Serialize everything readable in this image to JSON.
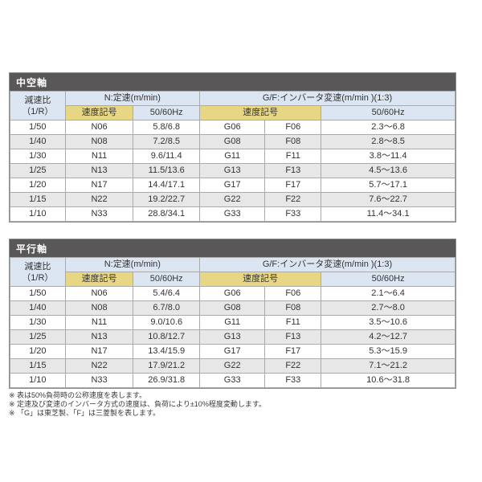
{
  "colors": {
    "band_bg": "#595757",
    "band_text": "#ffffff",
    "header_blue": "#dce6f2",
    "header_yellow": "#e7d784",
    "row_alt_bg": "#e7e7e7",
    "border": "#aaaaaa"
  },
  "tables": [
    {
      "title": "中空軸",
      "header": {
        "ratio_line1": "減速比",
        "ratio_line2": "（1/R）",
        "n_group": "N:定速(m/min)",
        "gf_group": "G/F:インバータ変速(m/min )(1:3)",
        "speed_code_n": "速度記号",
        "hz_n": "50/60Hz",
        "speed_code_gf": "速度記号",
        "hz_gf": "50/60Hz"
      },
      "rows": [
        {
          "ratio": "1/50",
          "n_code": "N06",
          "n_speed": "5.8/6.8",
          "g_code": "G06",
          "f_code": "F06",
          "gf_speed": "2.3〜6.8"
        },
        {
          "ratio": "1/40",
          "n_code": "N08",
          "n_speed": "7.2/8.5",
          "g_code": "G08",
          "f_code": "F08",
          "gf_speed": "2.8〜8.5"
        },
        {
          "ratio": "1/30",
          "n_code": "N11",
          "n_speed": "9.6/11.4",
          "g_code": "G11",
          "f_code": "F11",
          "gf_speed": "3.8〜11.4"
        },
        {
          "ratio": "1/25",
          "n_code": "N13",
          "n_speed": "11.5/13.6",
          "g_code": "G13",
          "f_code": "F13",
          "gf_speed": "4.5〜13.6"
        },
        {
          "ratio": "1/20",
          "n_code": "N17",
          "n_speed": "14.4/17.1",
          "g_code": "G17",
          "f_code": "F17",
          "gf_speed": "5.7〜17.1"
        },
        {
          "ratio": "1/15",
          "n_code": "N22",
          "n_speed": "19.2/22.7",
          "g_code": "G22",
          "f_code": "F22",
          "gf_speed": "7.6〜22.7"
        },
        {
          "ratio": "1/10",
          "n_code": "N33",
          "n_speed": "28.8/34.1",
          "g_code": "G33",
          "f_code": "F33",
          "gf_speed": "11.4〜34.1"
        }
      ]
    },
    {
      "title": "平行軸",
      "header": {
        "ratio_line1": "減速比",
        "ratio_line2": "（1/R）",
        "n_group": "N:定速(m/min)",
        "gf_group": "G/F:インバータ変速(m/min )(1:3)",
        "speed_code_n": "速度記号",
        "hz_n": "50/60Hz",
        "speed_code_gf": "速度記号",
        "hz_gf": "50/60Hz"
      },
      "rows": [
        {
          "ratio": "1/50",
          "n_code": "N06",
          "n_speed": "5.4/6.4",
          "g_code": "G06",
          "f_code": "F06",
          "gf_speed": "2.1〜6.4"
        },
        {
          "ratio": "1/40",
          "n_code": "N08",
          "n_speed": "6.7/8.0",
          "g_code": "G08",
          "f_code": "F08",
          "gf_speed": "2.7〜8.0"
        },
        {
          "ratio": "1/30",
          "n_code": "N11",
          "n_speed": "9.0/10.6",
          "g_code": "G11",
          "f_code": "F11",
          "gf_speed": "3.5〜10.6"
        },
        {
          "ratio": "1/25",
          "n_code": "N13",
          "n_speed": "10.8/12.7",
          "g_code": "G13",
          "f_code": "F13",
          "gf_speed": "4.2〜12.7"
        },
        {
          "ratio": "1/20",
          "n_code": "N17",
          "n_speed": "13.4/15.9",
          "g_code": "G17",
          "f_code": "F17",
          "gf_speed": "5.3〜15.9"
        },
        {
          "ratio": "1/15",
          "n_code": "N22",
          "n_speed": "17.9/21.2",
          "g_code": "G22",
          "f_code": "F22",
          "gf_speed": "7.1〜21.2"
        },
        {
          "ratio": "1/10",
          "n_code": "N33",
          "n_speed": "26.9/31.8",
          "g_code": "G33",
          "f_code": "F33",
          "gf_speed": "10.6〜31.8"
        }
      ]
    }
  ],
  "footnotes": [
    "※ 表は50%負荷時の公称速度を表します。",
    "※ 定速及び変速のインバータ方式の速度は、負荷により±10%程度変動します。",
    "※ 「G」は東芝製、「F」は三菱製を表します。"
  ]
}
